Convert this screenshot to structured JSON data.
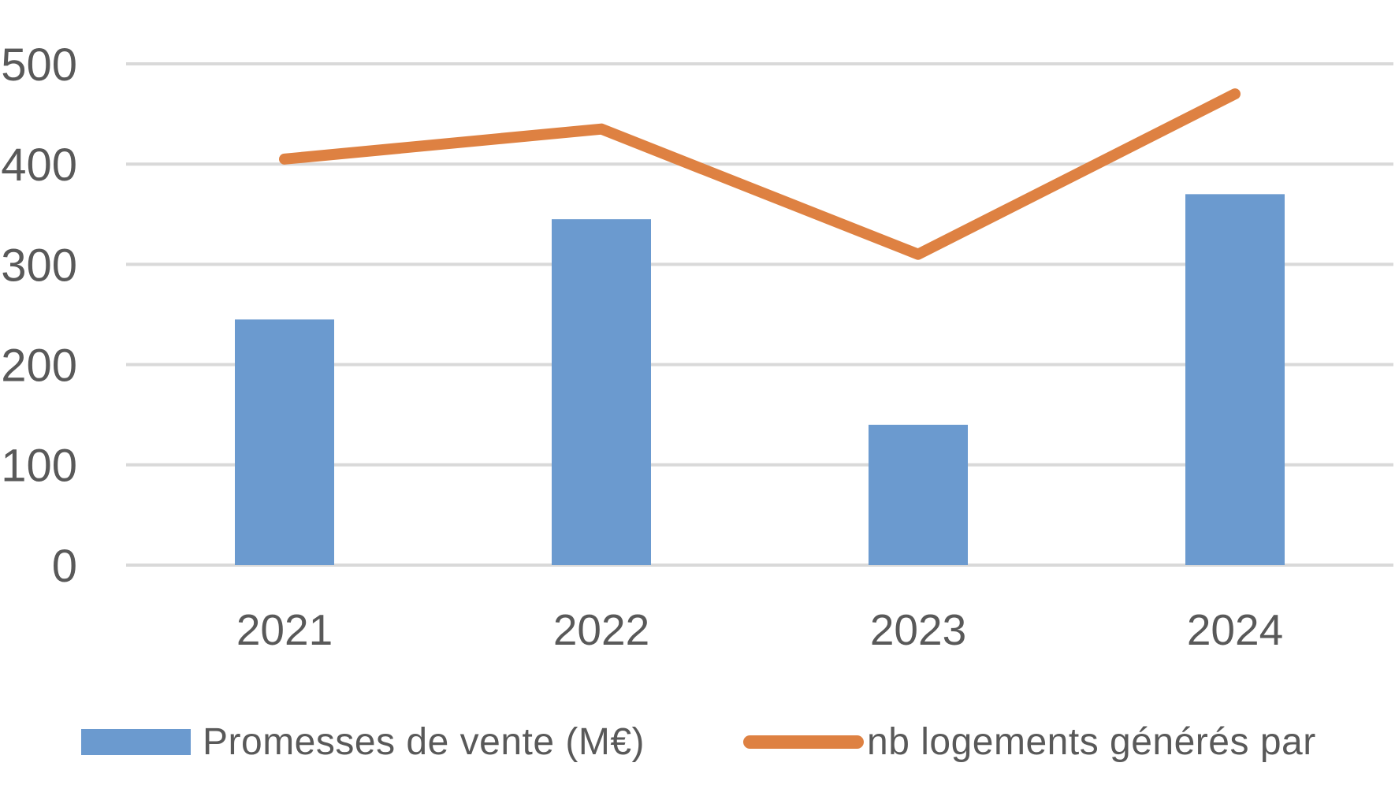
{
  "chart_data": {
    "type": "combo",
    "categories": [
      "2021",
      "2022",
      "2023",
      "2024"
    ],
    "series": [
      {
        "name": "Promesses de vente (M€)",
        "type": "bar",
        "values": [
          245,
          345,
          140,
          370
        ],
        "color": "#6B9ACF"
      },
      {
        "name": "nb logements générés par",
        "type": "line",
        "values": [
          405,
          435,
          310,
          470
        ],
        "color": "#DE8142"
      }
    ],
    "title": "",
    "xlabel": "",
    "ylabel": "",
    "ylim": [
      0,
      500
    ],
    "yticks": [
      0,
      100,
      200,
      300,
      400,
      500
    ],
    "grid": true,
    "legend_position": "bottom"
  },
  "legend": {
    "items": [
      {
        "label": "Promesses de vente (M€)",
        "swatch": "bar-swatch",
        "color": "#6B9ACF"
      },
      {
        "label": "nb logements générés par",
        "swatch": "line-swatch",
        "color": "#DE8142"
      }
    ]
  },
  "colors": {
    "bar": "#6B9ACF",
    "line": "#DE8142",
    "gridline": "#D9D9D9",
    "axis_text": "#595959",
    "background": "#FFFFFF"
  }
}
